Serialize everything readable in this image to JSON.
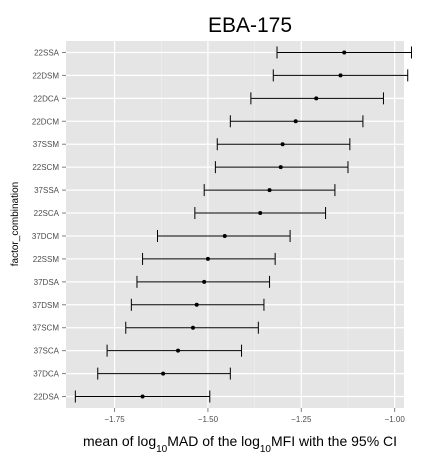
{
  "chart_data": {
    "type": "errorbar-dot",
    "title": "EBA-175",
    "ylabel": "factor_combination",
    "xlabel": {
      "parts": [
        {
          "t": "mean of log",
          "sub": false
        },
        {
          "t": "10",
          "sub": true
        },
        {
          "t": "MAD of  the log",
          "sub": false
        },
        {
          "t": "10",
          "sub": true
        },
        {
          "t": "MFI with the 95% CI",
          "sub": false
        }
      ]
    },
    "xlim": [
      -1.88,
      -0.975
    ],
    "xticks": [
      -1.75,
      -1.5,
      -1.25,
      -1.0
    ],
    "xtick_labels": [
      "−1.75",
      "−1.50",
      "−1.25",
      "−1.00"
    ],
    "grid": true,
    "background": "#e5e5e5",
    "categories": [
      "22SSA",
      "22DSM",
      "22DCA",
      "22DCM",
      "37SSM",
      "22SCM",
      "37SSA",
      "22SCA",
      "37DCM",
      "22SSM",
      "37DSA",
      "37DSM",
      "37SCM",
      "37SCA",
      "37DCA",
      "22DSA"
    ],
    "means": [
      -1.135,
      -1.145,
      -1.21,
      -1.265,
      -1.3,
      -1.305,
      -1.335,
      -1.36,
      -1.455,
      -1.5,
      -1.51,
      -1.53,
      -1.54,
      -1.58,
      -1.62,
      -1.675
    ],
    "lower": [
      -1.315,
      -1.325,
      -1.385,
      -1.44,
      -1.475,
      -1.48,
      -1.51,
      -1.535,
      -1.635,
      -1.675,
      -1.69,
      -1.705,
      -1.72,
      -1.77,
      -1.795,
      -1.855
    ],
    "upper": [
      -0.955,
      -0.965,
      -1.03,
      -1.085,
      -1.12,
      -1.125,
      -1.16,
      -1.185,
      -1.28,
      -1.32,
      -1.335,
      -1.35,
      -1.365,
      -1.41,
      -1.44,
      -1.495
    ]
  }
}
